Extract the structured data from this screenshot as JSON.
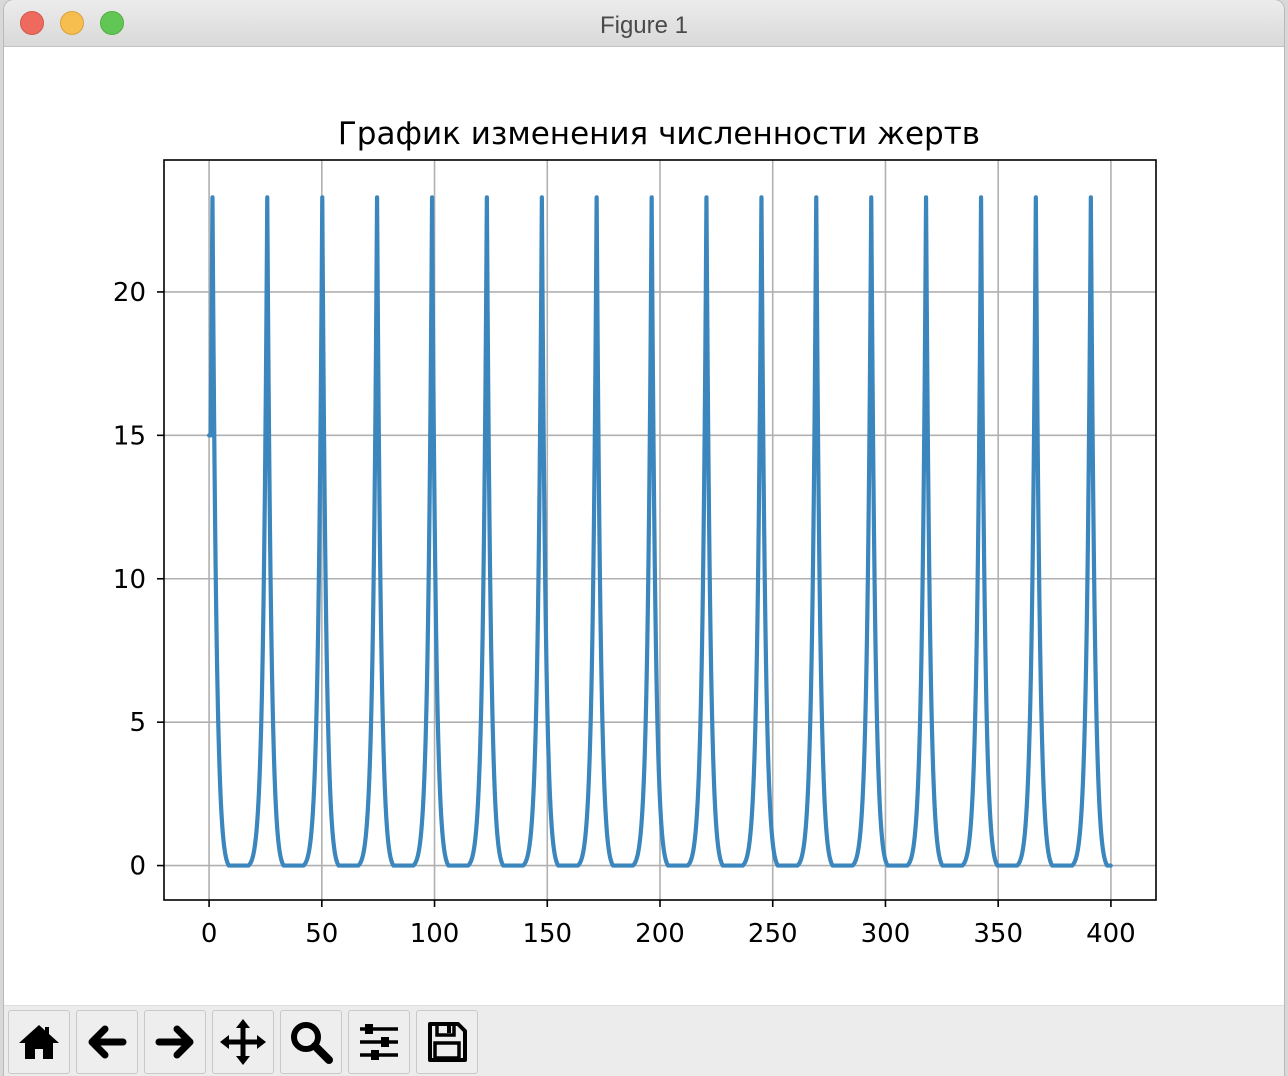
{
  "window": {
    "title": "Figure 1"
  },
  "toolbar": {
    "buttons": [
      {
        "name": "home-button",
        "icon": "home-icon"
      },
      {
        "name": "back-button",
        "icon": "arrow-left-icon"
      },
      {
        "name": "forward-button",
        "icon": "arrow-right-icon"
      },
      {
        "name": "pan-button",
        "icon": "move-icon"
      },
      {
        "name": "zoom-button",
        "icon": "magnifier-icon"
      },
      {
        "name": "configure-subplots-button",
        "icon": "sliders-icon"
      },
      {
        "name": "save-button",
        "icon": "floppy-disk-icon"
      }
    ]
  },
  "chart_data": {
    "type": "line",
    "title": "График изменения численности жертв",
    "xlabel": "",
    "ylabel": "",
    "xlim": [
      -20,
      420
    ],
    "ylim": [
      -1.2,
      24.6
    ],
    "xticks": [
      0,
      50,
      100,
      150,
      200,
      250,
      300,
      350,
      400
    ],
    "yticks": [
      0,
      5,
      10,
      15,
      20
    ],
    "grid": true,
    "line_color": "#3a86bd",
    "series": [
      {
        "start": {
          "x": 0,
          "y": 15.0
        },
        "peak_value": 23.3,
        "min_value": 0.0,
        "peak_times": [
          1.5,
          25.8,
          50.2,
          74.5,
          98.9,
          123.2,
          147.6,
          171.9,
          196.3,
          220.6,
          245.0,
          269.3,
          293.7,
          318.0,
          342.4,
          366.7,
          391.1
        ],
        "end_x": 400
      }
    ]
  }
}
